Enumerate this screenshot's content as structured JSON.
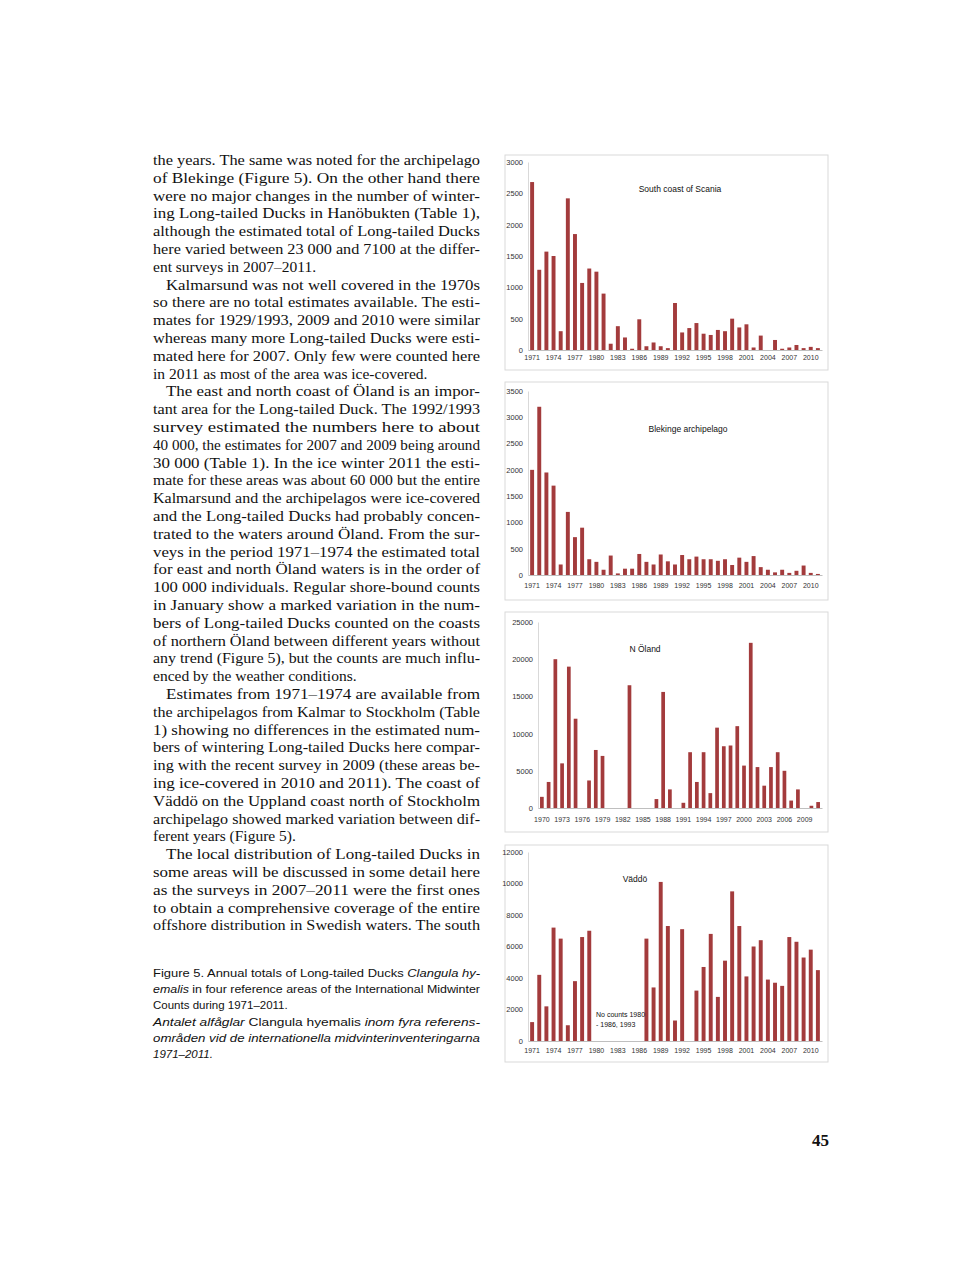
{
  "text": {
    "paragraphs": [
      [
        "the years. The same was noted for the archipelago",
        "of Blekinge (Figure 5). On the other hand there",
        "were no major changes in the number of winter-",
        "ing Long-tailed Ducks in Hanöbukten (Table 1),",
        "although the estimated total of Long-tailed Ducks",
        "here varied between 23 000 and 7100 at the differ-",
        "ent surveys in 2007–2011."
      ],
      [
        "Kalmarsund was not well covered in the 1970s",
        "so there are no total estimates available. The esti-",
        "mates for 1929/1993, 2009 and 2010 were similar",
        "whereas many more Long-tailed Ducks were esti-",
        "mated here for 2007. Only few were counted here",
        "in 2011 as most of the area was ice-covered."
      ],
      [
        "The east and north coast of Öland is an impor-",
        "tant area for the Long-tailed Duck. The 1992/1993",
        "survey estimated the numbers here to about",
        "40 000, the estimates for 2007 and 2009 being around",
        "30 000 (Table 1). In the ice winter 2011 the esti-",
        "mate for these areas was about 60 000 but the entire",
        "Kalmarsund and the archipelagos were ice-covered",
        "and the Long-tailed Ducks had probably concen-",
        "trated to the waters around Öland. From the sur-",
        "veys in the period 1971–1974 the estimated total",
        "for east and north Öland waters is in the order of",
        "100 000 individuals. Regular shore-bound counts",
        "in January show a marked variation in the num-",
        "bers of Long-tailed Ducks counted on the coasts",
        "of northern Öland between different years without",
        "any trend (Figure 5), but the counts are much influ-",
        "enced by the weather conditions."
      ],
      [
        "Estimates from 1971–1974 are available from",
        "the archipelagos from Kalmar to Stockholm (Table",
        "1) showing no differences in the estimated num-",
        "bers of wintering Long-tailed Ducks here compar-",
        "ing with the recent survey in 2009 (these areas be-",
        "ing ice-covered in 2010 and 2011). The coast of",
        "Väddö on the Uppland coast north of Stockholm",
        "archipelago showed marked variation between dif-",
        "ferent years (Figure 5)."
      ],
      [
        "The local distribution of Long-tailed Ducks in",
        "some areas will be discussed in some detail here",
        "as the surveys in 2007–2011 were the first ones",
        "to obtain a comprehensive coverage of the entire",
        "offshore distribution in Swedish waters. The south"
      ]
    ],
    "caption": [
      [
        {
          "text": "Figure 5. Annual totals of Long-tailed Ducks ",
          "em": false
        },
        {
          "text": "Clangula hy-",
          "em": true
        }
      ],
      [
        {
          "text": "emalis",
          "em": true
        },
        {
          "text": " in four reference areas of the International Midwinter",
          "em": false
        }
      ],
      [
        {
          "text": "Counts during 1971–2011.",
          "em": false
        }
      ],
      [
        {
          "text": "Antalet alfåglar ",
          "em": true
        },
        {
          "text": "Clangula hyemalis",
          "em": false
        },
        {
          "text": " inom fyra referens-",
          "em": true
        }
      ],
      [
        {
          "text": "områden vid de internationella midvinterinventeringarna",
          "em": true
        }
      ],
      [
        {
          "text": "1971–2011.",
          "em": true
        }
      ]
    ],
    "page_number": "45"
  },
  "chart_data": [
    {
      "type": "bar",
      "title": "South coast of Scania",
      "color": "#a33b3c",
      "categories": [
        "1971",
        null,
        null,
        "1974",
        null,
        null,
        "1977",
        null,
        null,
        "1980",
        null,
        null,
        "1983",
        null,
        null,
        "1986",
        null,
        null,
        "1989",
        null,
        null,
        "1992",
        null,
        null,
        "1995",
        null,
        null,
        "1998",
        null,
        null,
        "2001",
        null,
        null,
        "2004",
        null,
        null,
        "2007",
        null,
        null,
        "2010",
        null
      ],
      "values": [
        2680,
        1280,
        1570,
        1500,
        300,
        2420,
        1850,
        1070,
        1300,
        1250,
        900,
        100,
        380,
        200,
        20,
        490,
        60,
        120,
        60,
        30,
        750,
        280,
        350,
        430,
        260,
        240,
        320,
        300,
        500,
        360,
        410,
        40,
        230,
        0,
        160,
        20,
        40,
        80,
        30,
        50,
        30
      ],
      "ylim": [
        0,
        3000
      ],
      "yticks": [
        0,
        500,
        1000,
        1500,
        2000,
        2500,
        3000
      ]
    },
    {
      "type": "bar",
      "title": "Blekinge archipelago",
      "color": "#a33b3c",
      "categories": [
        "1971",
        null,
        null,
        "1974",
        null,
        null,
        "1977",
        null,
        null,
        "1980",
        null,
        null,
        "1983",
        null,
        null,
        "1986",
        null,
        null,
        "1989",
        null,
        null,
        "1992",
        null,
        null,
        "1995",
        null,
        null,
        "1998",
        null,
        null,
        "2001",
        null,
        null,
        "2004",
        null,
        null,
        "2007",
        null,
        null,
        "2010",
        null
      ],
      "values": [
        2000,
        3200,
        1950,
        1700,
        200,
        1200,
        720,
        900,
        300,
        250,
        100,
        370,
        30,
        120,
        120,
        400,
        250,
        200,
        390,
        260,
        200,
        380,
        300,
        350,
        300,
        300,
        270,
        300,
        190,
        330,
        250,
        360,
        150,
        100,
        50,
        100,
        40,
        80,
        180,
        40,
        20
      ],
      "ylim": [
        0,
        3500
      ],
      "yticks": [
        0,
        500,
        1000,
        1500,
        2000,
        2500,
        3000,
        3500
      ]
    },
    {
      "type": "bar",
      "title": "N Öland",
      "color": "#a33b3c",
      "categories": [
        "1970",
        null,
        null,
        "1973",
        null,
        null,
        "1976",
        null,
        null,
        "1979",
        null,
        null,
        "1982",
        null,
        null,
        "1985",
        null,
        null,
        "1988",
        null,
        null,
        "1991",
        null,
        null,
        "1994",
        null,
        null,
        "1997",
        null,
        null,
        "2000",
        null,
        null,
        "2003",
        null,
        null,
        "2006",
        null,
        null,
        "2009",
        null,
        null
      ],
      "values": [
        1500,
        3500,
        20000,
        6000,
        19000,
        12000,
        0,
        3700,
        7800,
        7000,
        0,
        0,
        0,
        16500,
        0,
        0,
        0,
        1200,
        15600,
        2500,
        0,
        700,
        7500,
        3500,
        7500,
        2000,
        10800,
        8300,
        8400,
        11000,
        5700,
        22200,
        5500,
        3000,
        5500,
        7500,
        5000,
        1000,
        2500,
        0,
        300,
        800
      ],
      "ylim": [
        0,
        25000
      ],
      "yticks": [
        0,
        5000,
        10000,
        15000,
        20000,
        25000
      ]
    },
    {
      "type": "bar",
      "title": "Väddö",
      "color": "#a33b3c",
      "categories": [
        "1971",
        null,
        null,
        "1974",
        null,
        null,
        "1977",
        null,
        null,
        "1980",
        null,
        null,
        "1983",
        null,
        null,
        "1986",
        null,
        null,
        "1989",
        null,
        null,
        "1992",
        null,
        null,
        "1995",
        null,
        null,
        "1998",
        null,
        null,
        "2001",
        null,
        null,
        "2004",
        null,
        null,
        "2007",
        null,
        null,
        "2010",
        null
      ],
      "values": [
        1200,
        4200,
        2200,
        7200,
        6500,
        1000,
        3800,
        6600,
        7000,
        null,
        null,
        null,
        null,
        null,
        null,
        null,
        6500,
        3400,
        10100,
        7300,
        1300,
        7100,
        null,
        3200,
        4700,
        6800,
        2800,
        5100,
        9500,
        7300,
        4100,
        6000,
        6400,
        3900,
        3700,
        3500,
        6600,
        6300,
        5300,
        5800,
        4500
      ],
      "ylim": [
        0,
        12000
      ],
      "yticks": [
        0,
        2000,
        4000,
        6000,
        8000,
        10000,
        12000
      ],
      "annotations": [
        "No counts 1980",
        "- 1986, 1993"
      ]
    }
  ]
}
